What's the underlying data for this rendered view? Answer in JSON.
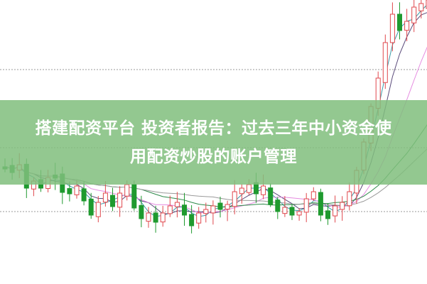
{
  "banner": {
    "title_line1": "搭建配资平台 投资者报告：过去三年中小资金使",
    "title_line2": "用配资炒股的账户管理"
  },
  "colors": {
    "up": "#e0474c",
    "down": "#1f9a2f",
    "banner": "#80be7c",
    "ma_pink": "#e58be0",
    "ma_teal": "#3a9aa8",
    "ma_dark": "#5a4a7a",
    "ma_green": "#2e8a4a",
    "ma_gray": "#9a9a9a"
  }
}
